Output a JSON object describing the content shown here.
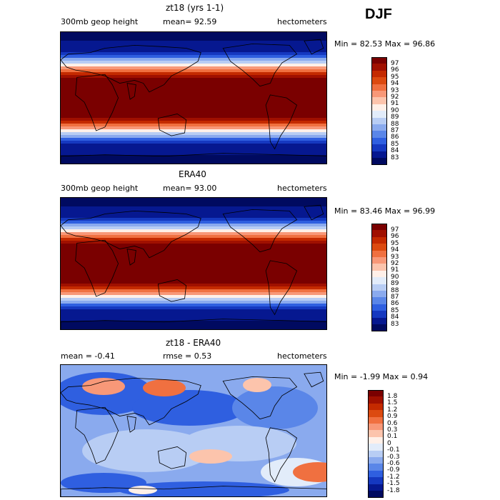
{
  "season": "DJF",
  "panels": [
    {
      "title": "zt18 (yrs 1-1)",
      "left_label": "300mb geop height",
      "mid_label": "mean=   92.59",
      "right_label": "hectometers",
      "minmax": "Min =  82.53 Max =  96.86",
      "colorbar": {
        "labels": [
          "97",
          "96",
          "95",
          "94",
          "93",
          "92",
          "91",
          "90",
          "89",
          "88",
          "87",
          "86",
          "85",
          "84",
          "83"
        ],
        "colors": [
          "#7a0000",
          "#a01000",
          "#c42a00",
          "#dc4a10",
          "#f07040",
          "#f89878",
          "#fcc4ac",
          "#fff0e8",
          "#e2ecfa",
          "#b8cdf4",
          "#8aaaee",
          "#5a86e8",
          "#2f5fe0",
          "#1538c0",
          "#061890",
          "#000a60"
        ]
      },
      "field": "total"
    },
    {
      "title": "ERA40",
      "left_label": "300mb geop height",
      "mid_label": "mean=   93.00",
      "right_label": "hectometers",
      "minmax": "Min =  83.46 Max =  96.99",
      "colorbar": {
        "labels": [
          "97",
          "96",
          "95",
          "94",
          "93",
          "92",
          "91",
          "90",
          "89",
          "88",
          "87",
          "86",
          "85",
          "84",
          "83"
        ],
        "colors": [
          "#7a0000",
          "#a01000",
          "#c42a00",
          "#dc4a10",
          "#f07040",
          "#f89878",
          "#fcc4ac",
          "#fff0e8",
          "#e2ecfa",
          "#b8cdf4",
          "#8aaaee",
          "#5a86e8",
          "#2f5fe0",
          "#1538c0",
          "#061890",
          "#000a60"
        ]
      },
      "field": "total"
    },
    {
      "title": "zt18 - ERA40",
      "left_label": "mean =   -0.41",
      "mid_label": "rmse =    0.53",
      "right_label": "hectometers",
      "minmax": "Min =  -1.99 Max =    0.94",
      "colorbar": {
        "labels": [
          "1.8",
          "1.5",
          "1.2",
          "0.9",
          "0.6",
          "0.3",
          "0.1",
          "0",
          "-0.1",
          "-0.3",
          "-0.6",
          "-0.9",
          "-1.2",
          "-1.5",
          "-1.8"
        ],
        "colors": [
          "#7a0000",
          "#a01000",
          "#c42a00",
          "#dc4a10",
          "#f07040",
          "#f89878",
          "#fcc4ac",
          "#fff0e8",
          "#e2ecfa",
          "#b8cdf4",
          "#8aaaee",
          "#5a86e8",
          "#2f5fe0",
          "#1538c0",
          "#061890",
          "#000a60"
        ]
      },
      "field": "diff"
    }
  ]
}
